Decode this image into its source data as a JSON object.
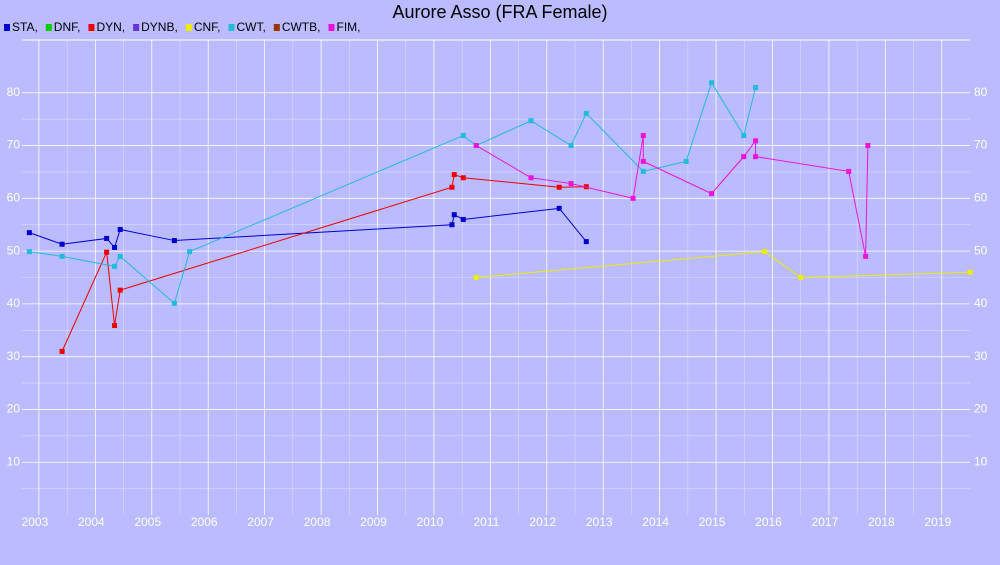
{
  "chart_data": {
    "type": "line",
    "title": "Aurore Asso (FRA Female)",
    "xlim": [
      2002.7,
      2019.5
    ],
    "xticks": [
      2003,
      2004,
      2005,
      2006,
      2007,
      2008,
      2009,
      2010,
      2011,
      2012,
      2013,
      2014,
      2015,
      2016,
      2017,
      2018,
      2019
    ],
    "ylim": [
      0,
      90
    ],
    "yticks": [
      10,
      20,
      30,
      40,
      50,
      60,
      70,
      80
    ],
    "grid": true,
    "minor_grid": true,
    "legend": "top-left",
    "series": [
      {
        "name": "STA,",
        "color": "#0000cc",
        "x": [
          2002.83,
          2003.41,
          2004.2,
          2004.34,
          2004.44,
          2005.4,
          2010.32,
          2010.36,
          2010.52,
          2012.22,
          2012.7
        ],
        "values": [
          53.5,
          51.3,
          52.4,
          50.7,
          54.1,
          52.0,
          55.0,
          56.9,
          56.0,
          58.1,
          51.8
        ]
      },
      {
        "name": "DNF,",
        "color": "#00cc00",
        "x": [],
        "values": []
      },
      {
        "name": "DYN,",
        "color": "#ee0000",
        "x": [
          2003.41,
          2004.2,
          2004.34,
          2004.44,
          2010.32,
          2010.36,
          2010.52,
          2012.22,
          2012.7
        ],
        "values": [
          31.0,
          49.8,
          35.9,
          42.6,
          62.1,
          64.5,
          63.9,
          62.1,
          62.2
        ]
      },
      {
        "name": "DYNB,",
        "color": "#6633dd",
        "x": [],
        "values": []
      },
      {
        "name": "CNF,",
        "color": "#eeee00",
        "x": [
          2010.75,
          2015.86,
          2016.5,
          2019.5
        ],
        "values": [
          45.0,
          49.9,
          45.0,
          46.0
        ]
      },
      {
        "name": "CWT,",
        "color": "#22bbdd",
        "x": [
          2002.83,
          2003.41,
          2004.34,
          2004.44,
          2005.4,
          2005.67,
          2010.52,
          2010.75,
          2011.72,
          2012.43,
          2012.7,
          2013.71,
          2014.47,
          2014.92,
          2015.49,
          2015.7
        ],
        "values": [
          49.9,
          49.0,
          47.1,
          49.0,
          40.1,
          49.9,
          71.9,
          70.0,
          74.7,
          70.0,
          76.1,
          65.1,
          67.0,
          81.9,
          71.9,
          81.0
        ]
      },
      {
        "name": "CWTB,",
        "color": "#993300",
        "x": [],
        "values": []
      },
      {
        "name": "FIM,",
        "color": "#ee11dd",
        "x": [
          2010.75,
          2011.72,
          2012.43,
          2013.53,
          2013.71,
          2013.71,
          2014.92,
          2015.49,
          2015.7,
          2015.7,
          2017.35,
          2017.65,
          2017.69
        ],
        "values": [
          70.0,
          63.9,
          62.8,
          60.0,
          71.9,
          67.0,
          60.9,
          67.9,
          70.9,
          67.9,
          65.1,
          49.0,
          70.0
        ]
      }
    ]
  }
}
